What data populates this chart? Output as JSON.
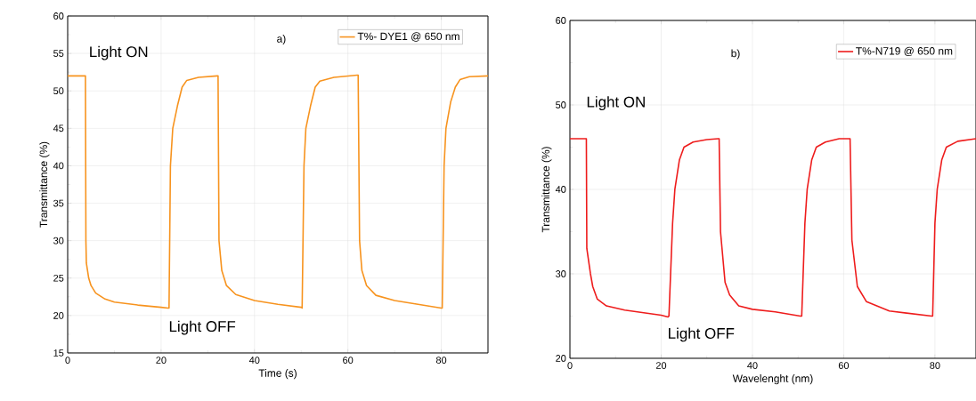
{
  "chart_data": [
    {
      "type": "line",
      "xlabel": "Time (s)",
      "ylabel": "Transmittance (%)",
      "xlim": [
        0,
        90
      ],
      "ylim": [
        15,
        60
      ],
      "xticks": [
        0,
        20,
        40,
        60,
        80
      ],
      "yticks": [
        15,
        20,
        25,
        30,
        35,
        40,
        45,
        50,
        55,
        60
      ],
      "grid": true,
      "legend": "top right",
      "series": [
        {
          "name": "T%- DYE1 @ 650 nm",
          "color": "#f7931e",
          "x": [
            0,
            3.8,
            3.9,
            4,
            4.5,
            5,
            6,
            8,
            10,
            15,
            20,
            21.5,
            21.7,
            22,
            22.5,
            23.5,
            24.5,
            25.5,
            28,
            32,
            32.2,
            32.4,
            33,
            34,
            36,
            40,
            45,
            50,
            50.2,
            50.6,
            51,
            52,
            53,
            54,
            57,
            62,
            62.2,
            62.5,
            63,
            64,
            66,
            70,
            75,
            80,
            80.2,
            80.6,
            81,
            82,
            83,
            84,
            86,
            90
          ],
          "values": [
            52,
            52,
            30,
            27,
            25,
            24,
            23,
            22.2,
            21.8,
            21.4,
            21.1,
            21,
            21,
            40,
            45,
            48,
            50.5,
            51.4,
            51.8,
            52,
            52,
            30,
            26,
            24,
            22.8,
            22,
            21.5,
            21.1,
            21,
            40,
            45,
            48,
            50.5,
            51.3,
            51.8,
            52.1,
            52.1,
            30,
            26,
            24,
            22.7,
            22,
            21.5,
            21,
            21,
            40,
            45,
            48.5,
            50.5,
            51.5,
            51.9,
            52
          ]
        }
      ],
      "annotations": [
        "a)",
        "Light ON",
        "Light OFF"
      ]
    },
    {
      "type": "line",
      "xlabel": "Wavelenght (nm)",
      "ylabel": "Transmittance (%)",
      "xlim": [
        0,
        89
      ],
      "ylim": [
        20,
        60
      ],
      "xticks": [
        0,
        20,
        40,
        60,
        80
      ],
      "yticks": [
        20,
        30,
        40,
        50,
        60
      ],
      "grid": true,
      "legend": "top right",
      "series": [
        {
          "name": "T%-N719 @ 650 nm",
          "color": "#ee1c1c",
          "x": [
            0,
            3.6,
            3.7,
            4.5,
            5,
            6,
            8,
            12,
            20,
            21.5,
            21.7,
            22.5,
            23,
            24,
            25,
            27,
            30,
            32.5,
            32.7,
            33,
            34,
            35,
            37,
            40,
            45,
            50.5,
            50.8,
            51.5,
            52,
            53,
            54,
            56,
            59,
            61.2,
            61.4,
            61.8,
            63,
            65,
            70,
            79.3,
            79.5,
            80,
            80.5,
            81.5,
            82.5,
            85,
            89
          ],
          "values": [
            46,
            46,
            33,
            30,
            28.5,
            27,
            26.2,
            25.7,
            25.1,
            24.9,
            25,
            36,
            40,
            43.5,
            45,
            45.6,
            45.9,
            46,
            46,
            35,
            29,
            27.5,
            26.2,
            25.8,
            25.5,
            25,
            25,
            36,
            40,
            43.5,
            45,
            45.6,
            46,
            46,
            46,
            34,
            28.5,
            26.7,
            25.6,
            25,
            25,
            36,
            40,
            43.5,
            45,
            45.7,
            46
          ]
        }
      ],
      "annotations": [
        "b)",
        "Light ON",
        "Light OFF"
      ]
    }
  ]
}
